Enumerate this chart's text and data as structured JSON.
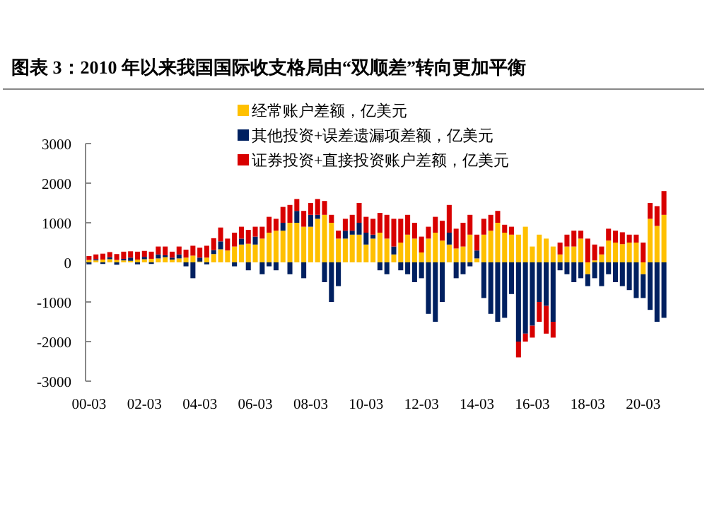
{
  "chart_data": {
    "type": "bar",
    "stacked": true,
    "title": "图表 3：2010 年以来我国国际收支格局由“双顺差”转向更加平衡",
    "legend": "top",
    "ylim": [
      -3000,
      3000
    ],
    "yticks": [
      -3000,
      -2000,
      -1000,
      0,
      1000,
      2000,
      3000
    ],
    "categories": [
      "00-03",
      null,
      null,
      null,
      null,
      null,
      null,
      null,
      "02-03",
      null,
      null,
      null,
      null,
      null,
      null,
      null,
      "04-03",
      null,
      null,
      null,
      null,
      null,
      null,
      null,
      "06-03",
      null,
      null,
      null,
      null,
      null,
      null,
      null,
      "08-03",
      null,
      null,
      null,
      null,
      null,
      null,
      null,
      "10-03",
      null,
      null,
      null,
      null,
      null,
      null,
      null,
      "12-03",
      null,
      null,
      null,
      null,
      null,
      null,
      null,
      "14-03",
      null,
      null,
      null,
      null,
      null,
      null,
      null,
      "16-03",
      null,
      null,
      null,
      null,
      null,
      null,
      null,
      "18-03",
      null,
      null,
      null,
      null,
      null,
      null,
      null,
      "20-03",
      null,
      null,
      null
    ],
    "series": [
      {
        "name": "经常账户差额，亿美元",
        "color": "#ffc000",
        "values": [
          60,
          50,
          70,
          80,
          60,
          50,
          40,
          70,
          80,
          90,
          100,
          130,
          70,
          100,
          120,
          170,
          20,
          120,
          210,
          330,
          300,
          400,
          450,
          470,
          450,
          600,
          750,
          800,
          800,
          1000,
          1000,
          900,
          900,
          1100,
          1200,
          1000,
          600,
          600,
          700,
          700,
          450,
          600,
          750,
          600,
          200,
          500,
          700,
          600,
          250,
          600,
          750,
          550,
          450,
          350,
          400,
          700,
          100,
          700,
          800,
          1000,
          750,
          700,
          700,
          900,
          400,
          700,
          600,
          400,
          200,
          400,
          400,
          600,
          -300,
          50,
          200,
          550,
          500,
          460,
          500,
          500,
          -300,
          1100,
          920,
          1200
        ]
      },
      {
        "name": "其他投资+误差遗漏项差额，亿美元",
        "color": "#002060",
        "values": [
          -50,
          30,
          -40,
          50,
          -60,
          40,
          80,
          -50,
          60,
          -40,
          100,
          50,
          50,
          100,
          -100,
          -400,
          100,
          -50,
          100,
          200,
          0,
          -100,
          150,
          -200,
          200,
          -300,
          -100,
          -200,
          200,
          -300,
          300,
          -400,
          300,
          100,
          -500,
          -1000,
          -600,
          200,
          100,
          300,
          300,
          100,
          -200,
          -300,
          200,
          -200,
          -300,
          -500,
          -400,
          -1300,
          -1500,
          -1000,
          300,
          -400,
          -300,
          -100,
          200,
          -900,
          -1300,
          -1500,
          -1400,
          -800,
          -2000,
          -1800,
          -1600,
          -1000,
          -1100,
          -1500,
          -200,
          -300,
          -500,
          -400,
          -300,
          -400,
          -600,
          -300,
          -500,
          -600,
          -700,
          -900,
          -600,
          -1200,
          -1500,
          -1400
        ]
      },
      {
        "name": "证券投资+直接投资账户差额，亿美元",
        "color": "#d80000",
        "values": [
          100,
          120,
          150,
          130,
          150,
          180,
          160,
          200,
          150,
          180,
          200,
          220,
          150,
          200,
          200,
          250,
          250,
          300,
          300,
          350,
          300,
          350,
          300,
          350,
          250,
          300,
          400,
          300,
          400,
          450,
          300,
          400,
          300,
          400,
          350,
          200,
          200,
          300,
          400,
          500,
          400,
          400,
          500,
          600,
          700,
          600,
          500,
          400,
          400,
          300,
          400,
          500,
          700,
          500,
          600,
          500,
          400,
          400,
          400,
          300,
          200,
          200,
          -400,
          -200,
          -300,
          -500,
          -700,
          -400,
          300,
          300,
          400,
          200,
          600,
          400,
          200,
          300,
          300,
          300,
          200,
          200,
          500,
          400,
          500,
          600
        ]
      }
    ]
  }
}
